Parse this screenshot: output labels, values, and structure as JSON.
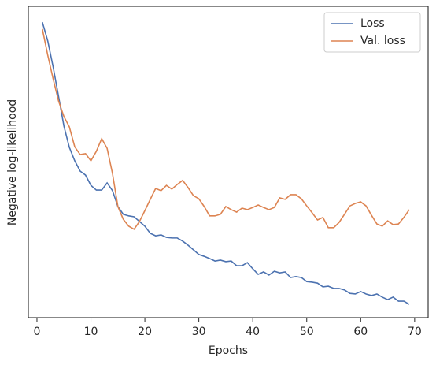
{
  "chart_data": {
    "type": "line",
    "xlabel": "Epochs",
    "ylabel": "Negative log-likelihood",
    "x": [
      1,
      2,
      3,
      4,
      5,
      6,
      7,
      8,
      9,
      10,
      11,
      12,
      13,
      14,
      15,
      16,
      17,
      18,
      19,
      20,
      21,
      22,
      23,
      24,
      25,
      26,
      27,
      28,
      29,
      30,
      31,
      32,
      33,
      34,
      35,
      36,
      37,
      38,
      39,
      40,
      41,
      42,
      43,
      44,
      45,
      46,
      47,
      48,
      49,
      50,
      51,
      52,
      53,
      54,
      55,
      56,
      57,
      58,
      59,
      60,
      61,
      62,
      63,
      64,
      65,
      66,
      67,
      68,
      69
    ],
    "series": [
      {
        "name": "Loss",
        "color": "#4c72b0",
        "values": [
          94.9,
          88.9,
          80.5,
          71.1,
          61.5,
          54.7,
          50.4,
          47.1,
          45.8,
          42.5,
          41.0,
          41.0,
          43.3,
          40.8,
          35.7,
          33.2,
          32.7,
          32.4,
          30.9,
          29.4,
          27.1,
          26.3,
          26.6,
          25.8,
          25.6,
          25.6,
          24.6,
          23.3,
          21.8,
          20.3,
          19.7,
          19.0,
          18.2,
          18.5,
          18.0,
          18.2,
          16.7,
          16.7,
          17.7,
          15.7,
          13.9,
          14.7,
          13.7,
          14.9,
          14.4,
          14.7,
          12.9,
          13.2,
          12.9,
          11.6,
          11.4,
          11.1,
          9.9,
          10.1,
          9.4,
          9.4,
          8.9,
          7.8,
          7.6,
          8.4,
          7.6,
          7.1,
          7.6,
          6.6,
          5.8,
          6.6,
          5.3,
          5.3,
          4.3
        ]
      },
      {
        "name": "Val. loss",
        "color": "#dd8452",
        "values": [
          92.7,
          84.3,
          76.7,
          69.6,
          64.6,
          61.3,
          54.9,
          52.4,
          52.7,
          50.4,
          53.4,
          57.5,
          54.4,
          46.3,
          35.7,
          31.6,
          29.4,
          28.4,
          30.9,
          34.4,
          38.0,
          41.5,
          40.8,
          42.5,
          41.3,
          42.8,
          44.1,
          41.8,
          39.2,
          38.2,
          35.7,
          32.7,
          32.7,
          33.2,
          35.7,
          34.7,
          33.9,
          35.2,
          34.7,
          35.4,
          36.2,
          35.4,
          34.7,
          35.4,
          38.5,
          38.0,
          39.5,
          39.5,
          38.2,
          35.9,
          33.7,
          31.4,
          32.2,
          28.9,
          28.9,
          30.6,
          33.2,
          35.9,
          36.7,
          37.2,
          35.9,
          32.9,
          30.1,
          29.4,
          31.1,
          29.9,
          30.1,
          32.2,
          34.7
        ]
      }
    ],
    "xlim": [
      -1.6,
      72.5
    ],
    "xticks": [
      0,
      10,
      20,
      30,
      40,
      50,
      60,
      70
    ],
    "ylim": [
      0,
      100
    ],
    "legend": "upper right"
  }
}
